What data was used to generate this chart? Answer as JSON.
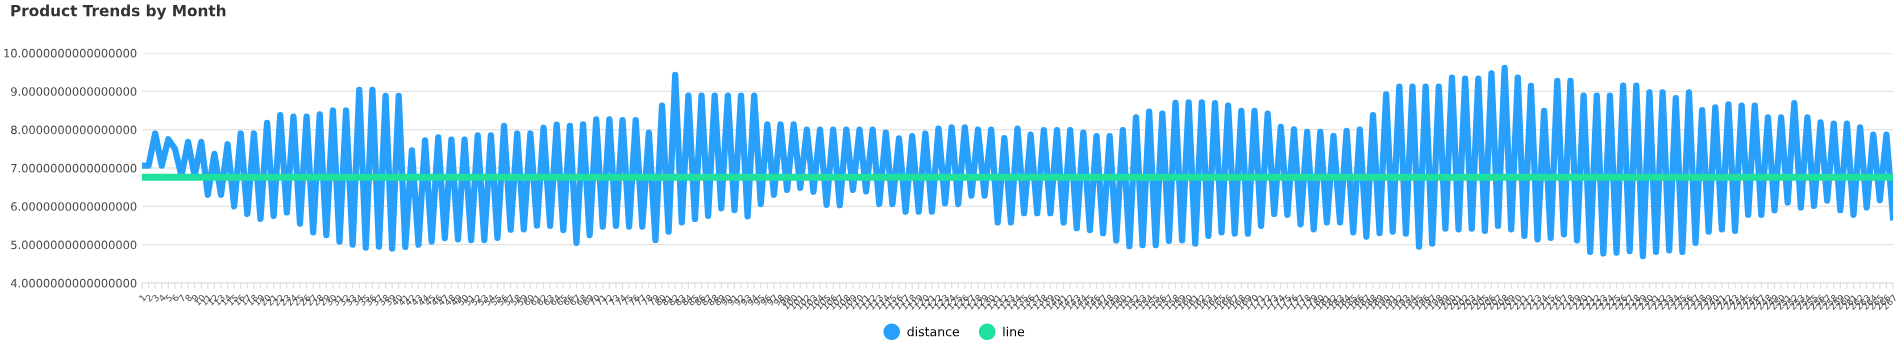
{
  "chart_data": {
    "type": "line",
    "title": "Product Trends by Month",
    "categories": [
      "1",
      "2",
      "3",
      "4",
      "5",
      "6",
      "7",
      "8",
      "9",
      "10",
      "11",
      "12",
      "13",
      "14",
      "15",
      "16",
      "17",
      "18",
      "19",
      "20",
      "21",
      "22",
      "23",
      "24",
      "25",
      "26",
      "27",
      "28",
      "29",
      "30",
      "31",
      "32",
      "33",
      "34",
      "35",
      "36",
      "37",
      "38",
      "39",
      "40",
      "41",
      "42",
      "43",
      "44",
      "45",
      "46",
      "47",
      "48",
      "49",
      "50",
      "51",
      "52",
      "53",
      "54",
      "55",
      "56",
      "57",
      "58",
      "59",
      "60",
      "61",
      "62",
      "63",
      "64",
      "65",
      "66",
      "67",
      "68",
      "69",
      "70",
      "71",
      "72",
      "73",
      "74",
      "75",
      "76",
      "77",
      "78",
      "79",
      "80",
      "81",
      "82",
      "83",
      "84",
      "85",
      "86",
      "87",
      "88",
      "89",
      "90",
      "91",
      "92",
      "93",
      "94",
      "95",
      "96",
      "97",
      "98",
      "99",
      "100",
      "101",
      "102",
      "103",
      "104",
      "105",
      "106",
      "107",
      "108",
      "109",
      "110",
      "111",
      "112",
      "113",
      "114",
      "115",
      "116",
      "117",
      "118",
      "119",
      "120",
      "121",
      "122",
      "123",
      "124",
      "125",
      "126",
      "127",
      "128",
      "129",
      "130",
      "131",
      "132",
      "133",
      "134",
      "135",
      "136",
      "137",
      "138",
      "139",
      "140",
      "141",
      "142",
      "143",
      "144",
      "145",
      "146",
      "147",
      "148",
      "149",
      "150",
      "151",
      "152",
      "153",
      "154",
      "155",
      "156",
      "157",
      "158",
      "159",
      "160",
      "161",
      "162",
      "163",
      "164",
      "165",
      "166",
      "167",
      "168",
      "169",
      "170",
      "171",
      "172",
      "173",
      "174",
      "175",
      "176",
      "177",
      "178",
      "179",
      "180",
      "181",
      "182",
      "183",
      "184",
      "185",
      "186",
      "187",
      "188",
      "189",
      "190",
      "191",
      "192",
      "193",
      "194",
      "195",
      "196",
      "197",
      "198",
      "199",
      "200",
      "201",
      "202",
      "203",
      "204",
      "205",
      "206",
      "207",
      "208",
      "209",
      "210",
      "211",
      "212",
      "213",
      "214",
      "215",
      "216",
      "217",
      "218",
      "219",
      "220",
      "221",
      "222",
      "223",
      "224",
      "225",
      "226",
      "227",
      "228",
      "229",
      "230",
      "231",
      "232",
      "233",
      "234",
      "235",
      "236",
      "237",
      "238",
      "239",
      "240",
      "241",
      "242",
      "243",
      "244",
      "245",
      "246",
      "247",
      "248",
      "249",
      "250",
      "251",
      "252",
      "253",
      "254",
      "255",
      "256",
      "257",
      "258",
      "259",
      "260",
      "261",
      "262",
      "263",
      "264",
      "265",
      "266",
      "267"
    ],
    "series": [
      {
        "name": "distance",
        "color": "#279ffb",
        "values": [
          7.06,
          7.06,
          7.9,
          7.06,
          7.75,
          7.5,
          6.8,
          7.68,
          6.79,
          7.68,
          6.3,
          7.37,
          6.3,
          7.62,
          6.0,
          7.9,
          5.8,
          7.9,
          5.67,
          8.18,
          5.75,
          8.38,
          5.84,
          8.34,
          5.55,
          8.34,
          5.32,
          8.4,
          5.25,
          8.5,
          5.08,
          8.5,
          5.0,
          9.04,
          4.92,
          9.04,
          4.95,
          8.88,
          4.9,
          8.88,
          4.94,
          7.46,
          5.0,
          7.72,
          5.08,
          7.8,
          5.17,
          7.74,
          5.14,
          7.74,
          5.12,
          7.85,
          5.12,
          7.85,
          5.18,
          8.1,
          5.39,
          7.9,
          5.4,
          7.9,
          5.5,
          8.05,
          5.49,
          8.13,
          5.38,
          8.1,
          5.05,
          8.14,
          5.25,
          8.27,
          5.47,
          8.27,
          5.49,
          8.25,
          5.47,
          8.25,
          5.47,
          7.92,
          5.12,
          8.63,
          5.34,
          9.43,
          5.58,
          8.89,
          5.67,
          8.89,
          5.75,
          8.89,
          5.95,
          8.89,
          5.9,
          8.89,
          5.74,
          8.89,
          6.06,
          8.14,
          6.3,
          8.14,
          6.43,
          8.14,
          6.48,
          8.0,
          6.38,
          8.0,
          6.04,
          8.0,
          6.03,
          8.0,
          6.43,
          8.0,
          6.39,
          8.0,
          6.06,
          7.92,
          6.06,
          7.77,
          5.86,
          7.83,
          5.86,
          7.9,
          5.86,
          8.03,
          6.08,
          8.06,
          6.06,
          8.06,
          6.28,
          8.0,
          6.28,
          8.0,
          5.58,
          7.78,
          5.58,
          8.03,
          5.82,
          7.87,
          5.82,
          7.99,
          5.82,
          7.99,
          5.58,
          7.99,
          5.43,
          7.92,
          5.38,
          7.83,
          5.3,
          7.83,
          5.11,
          7.99,
          4.96,
          8.32,
          4.99,
          8.47,
          4.99,
          8.42,
          5.1,
          8.7,
          5.11,
          8.71,
          5.03,
          8.71,
          5.23,
          8.69,
          5.32,
          8.63,
          5.29,
          8.49,
          5.29,
          8.49,
          5.49,
          8.42,
          5.8,
          8.07,
          5.78,
          8.01,
          5.53,
          7.94,
          5.4,
          7.94,
          5.58,
          7.84,
          5.58,
          7.97,
          5.32,
          8.0,
          5.21,
          8.38,
          5.3,
          8.92,
          5.34,
          9.12,
          5.29,
          9.12,
          4.95,
          9.12,
          5.03,
          9.12,
          5.42,
          9.36,
          5.4,
          9.33,
          5.42,
          9.33,
          5.36,
          9.47,
          5.49,
          9.61,
          5.4,
          9.36,
          5.23,
          9.14,
          5.14,
          8.49,
          5.18,
          9.27,
          5.27,
          9.27,
          5.11,
          8.89,
          4.81,
          8.89,
          4.77,
          8.89,
          4.79,
          9.15,
          4.83,
          9.15,
          4.7,
          8.97,
          4.81,
          8.97,
          4.85,
          8.82,
          4.81,
          8.97,
          5.05,
          8.51,
          5.34,
          8.58,
          5.4,
          8.66,
          5.36,
          8.63,
          5.78,
          8.63,
          5.78,
          8.32,
          5.9,
          8.32,
          6.1,
          8.69,
          5.97,
          8.32,
          6.01,
          8.19,
          6.15,
          8.16,
          5.9,
          8.16,
          5.78,
          8.06,
          5.97,
          7.87,
          6.16,
          7.87,
          5.71
        ]
      },
      {
        "name": "line",
        "color": "#1fe09c",
        "values": [
          6.76,
          6.76,
          6.76,
          6.76,
          6.76,
          6.76,
          6.76,
          6.76,
          6.76,
          6.76,
          6.76,
          6.76,
          6.76,
          6.76,
          6.76,
          6.76,
          6.76,
          6.76,
          6.76,
          6.76,
          6.76,
          6.76,
          6.76,
          6.76,
          6.76,
          6.76,
          6.76,
          6.76,
          6.76,
          6.76,
          6.76,
          6.76,
          6.76,
          6.76,
          6.76,
          6.76,
          6.76,
          6.76,
          6.76,
          6.76,
          6.76,
          6.76,
          6.76,
          6.76,
          6.76,
          6.76,
          6.76,
          6.76,
          6.76,
          6.76,
          6.76,
          6.76,
          6.76,
          6.76,
          6.76,
          6.76,
          6.76,
          6.76,
          6.76,
          6.76,
          6.76,
          6.76,
          6.76,
          6.76,
          6.76,
          6.76,
          6.76,
          6.76,
          6.76,
          6.76,
          6.76,
          6.76,
          6.76,
          6.76,
          6.76,
          6.76,
          6.76,
          6.76,
          6.76,
          6.76,
          6.76,
          6.76,
          6.76,
          6.76,
          6.76,
          6.76,
          6.76,
          6.76,
          6.76,
          6.76,
          6.76,
          6.76,
          6.76,
          6.76,
          6.76,
          6.76,
          6.76,
          6.76,
          6.76,
          6.76,
          6.76,
          6.76,
          6.76,
          6.76,
          6.76,
          6.76,
          6.76,
          6.76,
          6.76,
          6.76,
          6.76,
          6.76,
          6.76,
          6.76,
          6.76,
          6.76,
          6.76,
          6.76,
          6.76,
          6.76,
          6.76,
          6.76,
          6.76,
          6.76,
          6.76,
          6.76,
          6.76,
          6.76,
          6.76,
          6.76,
          6.76,
          6.76,
          6.76,
          6.76,
          6.76,
          6.76,
          6.76,
          6.76,
          6.76,
          6.76,
          6.76,
          6.76,
          6.76,
          6.76,
          6.76,
          6.76,
          6.76,
          6.76,
          6.76,
          6.76,
          6.76,
          6.76,
          6.76,
          6.76,
          6.76,
          6.76,
          6.76,
          6.76,
          6.76,
          6.76,
          6.76,
          6.76,
          6.76,
          6.76,
          6.76,
          6.76,
          6.76,
          6.76,
          6.76,
          6.76,
          6.76,
          6.76,
          6.76,
          6.76,
          6.76,
          6.76,
          6.76,
          6.76,
          6.76,
          6.76,
          6.76,
          6.76,
          6.76,
          6.76,
          6.76,
          6.76,
          6.76,
          6.76,
          6.76,
          6.76,
          6.76,
          6.76,
          6.76,
          6.76,
          6.76,
          6.76,
          6.76,
          6.76,
          6.76,
          6.76,
          6.76,
          6.76,
          6.76,
          6.76,
          6.76,
          6.76,
          6.76,
          6.76,
          6.76,
          6.76,
          6.76,
          6.76,
          6.76,
          6.76,
          6.76,
          6.76,
          6.76,
          6.76,
          6.76,
          6.76,
          6.76,
          6.76,
          6.76,
          6.76,
          6.76,
          6.76,
          6.76,
          6.76,
          6.76,
          6.76,
          6.76,
          6.76,
          6.76,
          6.76,
          6.76,
          6.76,
          6.76,
          6.76,
          6.76,
          6.76,
          6.76,
          6.76,
          6.76,
          6.76,
          6.76,
          6.76,
          6.76,
          6.76,
          6.76,
          6.76,
          6.76,
          6.76,
          6.76,
          6.76,
          6.76,
          6.76,
          6.76,
          6.76,
          6.76,
          6.76,
          6.76,
          6.76,
          6.76,
          6.76,
          6.76,
          6.76,
          6.76
        ]
      }
    ],
    "ylim": [
      4,
      10
    ],
    "yticks": [
      {
        "value": 4,
        "label": "4.0000000000000000"
      },
      {
        "value": 5,
        "label": "5.0000000000000000"
      },
      {
        "value": 6,
        "label": "6.0000000000000000"
      },
      {
        "value": 7,
        "label": "7.0000000000000000"
      },
      {
        "value": 8,
        "label": "8.0000000000000000"
      },
      {
        "value": 9,
        "label": "9.0000000000000000"
      },
      {
        "value": 10,
        "label": "10.0000000000000000"
      }
    ],
    "grid": "y",
    "legend": "bottom",
    "marker": "none",
    "line_style": "solid"
  }
}
